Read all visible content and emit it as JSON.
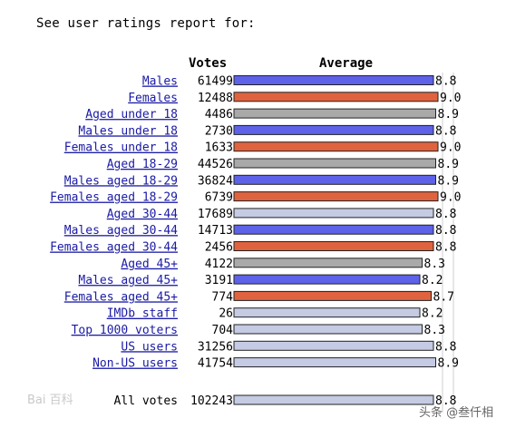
{
  "intro_text": "See user ratings report for:",
  "headers": {
    "votes": "Votes",
    "average": "Average"
  },
  "colors": {
    "blue": "#5d62e8",
    "red": "#e0633f",
    "gray": "#a9a9a9",
    "light": "#c4cbe3",
    "link": "#1a1aa6"
  },
  "chart_data": {
    "type": "bar",
    "title": "",
    "xlim": [
      0,
      9
    ],
    "rows": [
      {
        "label": "Males",
        "votes": "61499",
        "average": 8.8,
        "color": "blue",
        "link": true
      },
      {
        "label": "Females",
        "votes": "12488",
        "average": 9.0,
        "color": "red",
        "link": true
      },
      {
        "label": "Aged under 18",
        "votes": "4486",
        "average": 8.9,
        "color": "gray",
        "link": true
      },
      {
        "label": "Males under 18",
        "votes": "2730",
        "average": 8.8,
        "color": "blue",
        "link": true
      },
      {
        "label": "Females under 18",
        "votes": "1633",
        "average": 9.0,
        "color": "red",
        "link": true
      },
      {
        "label": "Aged 18-29",
        "votes": "44526",
        "average": 8.9,
        "color": "gray",
        "link": true
      },
      {
        "label": "Males aged 18-29",
        "votes": "36824",
        "average": 8.9,
        "color": "blue",
        "link": true
      },
      {
        "label": "Females aged 18-29",
        "votes": "6739",
        "average": 9.0,
        "color": "red",
        "link": true
      },
      {
        "label": "Aged 30-44",
        "votes": "17689",
        "average": 8.8,
        "color": "light",
        "link": true
      },
      {
        "label": "Males aged 30-44",
        "votes": "14713",
        "average": 8.8,
        "color": "blue",
        "link": true
      },
      {
        "label": "Females aged 30-44",
        "votes": "2456",
        "average": 8.8,
        "color": "red",
        "link": true
      },
      {
        "label": "Aged 45+",
        "votes": "4122",
        "average": 8.3,
        "color": "gray",
        "link": true
      },
      {
        "label": "Males aged 45+",
        "votes": "3191",
        "average": 8.2,
        "color": "blue",
        "link": true
      },
      {
        "label": "Females aged 45+",
        "votes": "774",
        "average": 8.7,
        "color": "red",
        "link": true
      },
      {
        "label": "IMDb staff",
        "votes": "26",
        "average": 8.2,
        "color": "light",
        "link": true
      },
      {
        "label": "Top 1000 voters",
        "votes": "704",
        "average": 8.3,
        "color": "light",
        "link": true
      },
      {
        "label": "US users",
        "votes": "31256",
        "average": 8.8,
        "color": "light",
        "link": true
      },
      {
        "label": "Non-US users",
        "votes": "41754",
        "average": 8.9,
        "color": "light",
        "link": true
      }
    ],
    "total": {
      "label": "All votes",
      "votes": "102243",
      "average": 8.8,
      "color": "light",
      "link": false
    }
  },
  "watermarks": {
    "left": "Bai 百科",
    "right": "头条 @叁仟相"
  }
}
